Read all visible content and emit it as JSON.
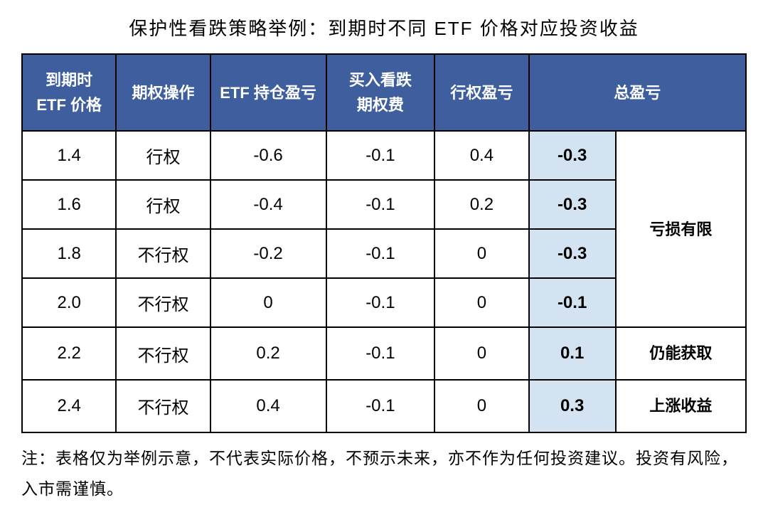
{
  "title": "保护性看跌策略举例：到期时不同 ETF 价格对应投资收益",
  "table": {
    "header_bg_color": "#3e5e9e",
    "header_text_color": "#ffffff",
    "highlight_color": "#d4e3f1",
    "border_color": "#000000",
    "columns": [
      "到期时\nETF 价格",
      "期权操作",
      "ETF 持仓盈亏",
      "买入看跌\n期权费",
      "行权盈亏",
      "总盈亏"
    ],
    "rows": [
      {
        "price": "1.4",
        "op": "行权",
        "position_pnl": "-0.6",
        "premium": "-0.1",
        "exercise_pnl": "0.4",
        "total": "-0.3"
      },
      {
        "price": "1.6",
        "op": "行权",
        "position_pnl": "-0.4",
        "premium": "-0.1",
        "exercise_pnl": "0.2",
        "total": "-0.3"
      },
      {
        "price": "1.8",
        "op": "不行权",
        "position_pnl": "-0.2",
        "premium": "-0.1",
        "exercise_pnl": "0",
        "total": "-0.3"
      },
      {
        "price": "2.0",
        "op": "不行权",
        "position_pnl": "0",
        "premium": "-0.1",
        "exercise_pnl": "0",
        "total": "-0.1"
      },
      {
        "price": "2.2",
        "op": "不行权",
        "position_pnl": "0.2",
        "premium": "-0.1",
        "exercise_pnl": "0",
        "total": "0.1"
      },
      {
        "price": "2.4",
        "op": "不行权",
        "position_pnl": "0.4",
        "premium": "-0.1",
        "exercise_pnl": "0",
        "total": "0.3"
      }
    ],
    "annotations": {
      "group1_label": "亏损有限",
      "group2_line1": "仍能获取",
      "group2_line2": "上涨收益"
    }
  },
  "footnote": "注：表格仅为举例示意，不代表实际价格，不预示未来，亦不作为任何投资建议。投资有风险，入市需谨慎。"
}
